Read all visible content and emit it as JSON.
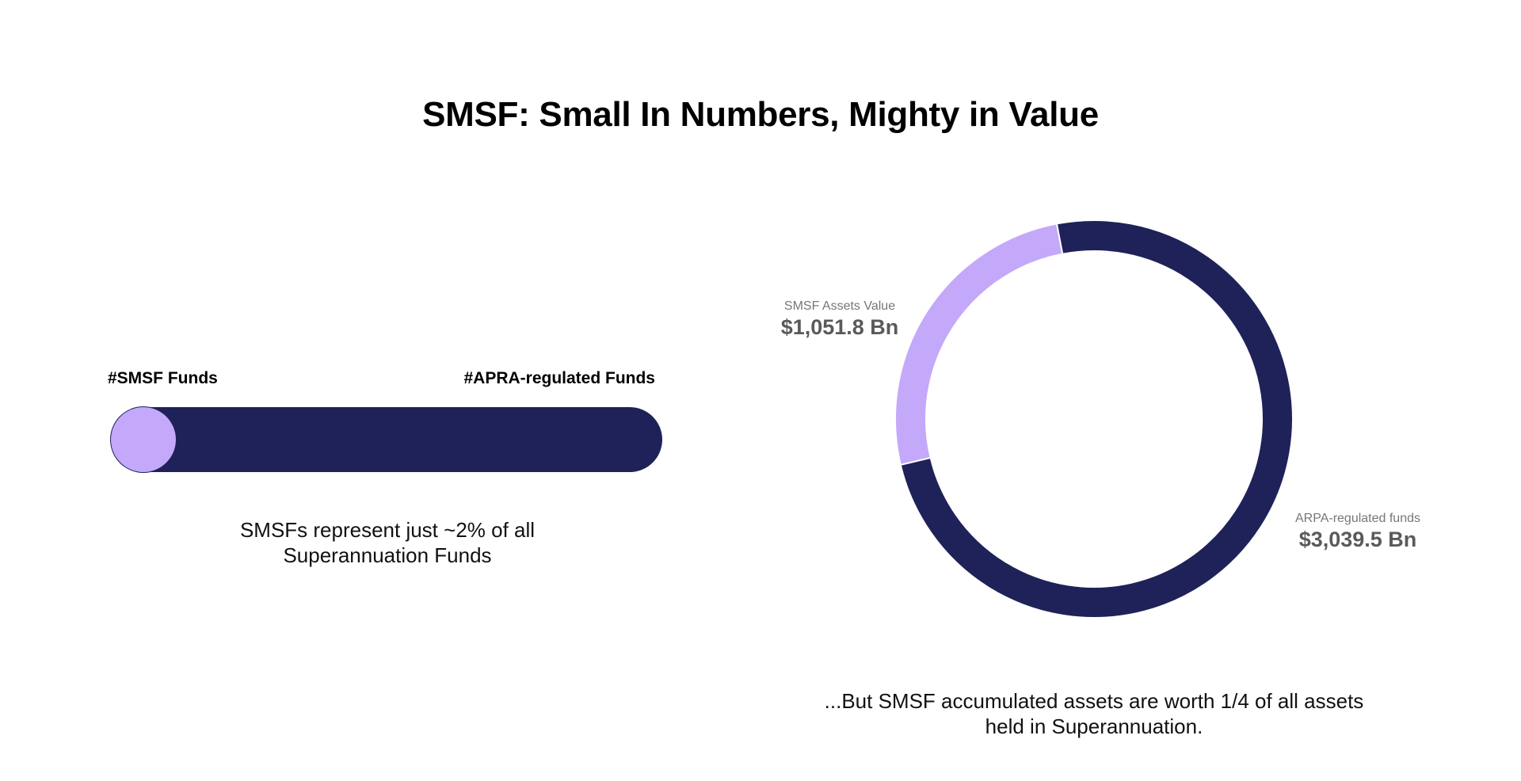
{
  "title": "SMSF: Small In Numbers, Mighty in Value",
  "chart_data": [
    {
      "type": "bar",
      "orientation": "horizontal-stacked",
      "categories": [
        "#SMSF Funds",
        "#APRA-regulated Funds"
      ],
      "values_percent": [
        2,
        98
      ],
      "colors": [
        "#c4a8fa",
        "#1f2258"
      ],
      "caption": "SMSFs represent just ~2% of all Superannuation Funds"
    },
    {
      "type": "pie",
      "style": "donut",
      "slices": [
        {
          "name": "SMSF Assets Value",
          "value": 1051.8,
          "display": "$1,051.8 Bn",
          "color": "#c4a8fa"
        },
        {
          "name": "ARPA-regulated funds",
          "value": 3039.5,
          "display": "$3,039.5 Bn",
          "color": "#1f2258"
        }
      ],
      "caption": "...But SMSF accumulated assets are worth 1/4 of all assets held in Superannuation."
    }
  ]
}
